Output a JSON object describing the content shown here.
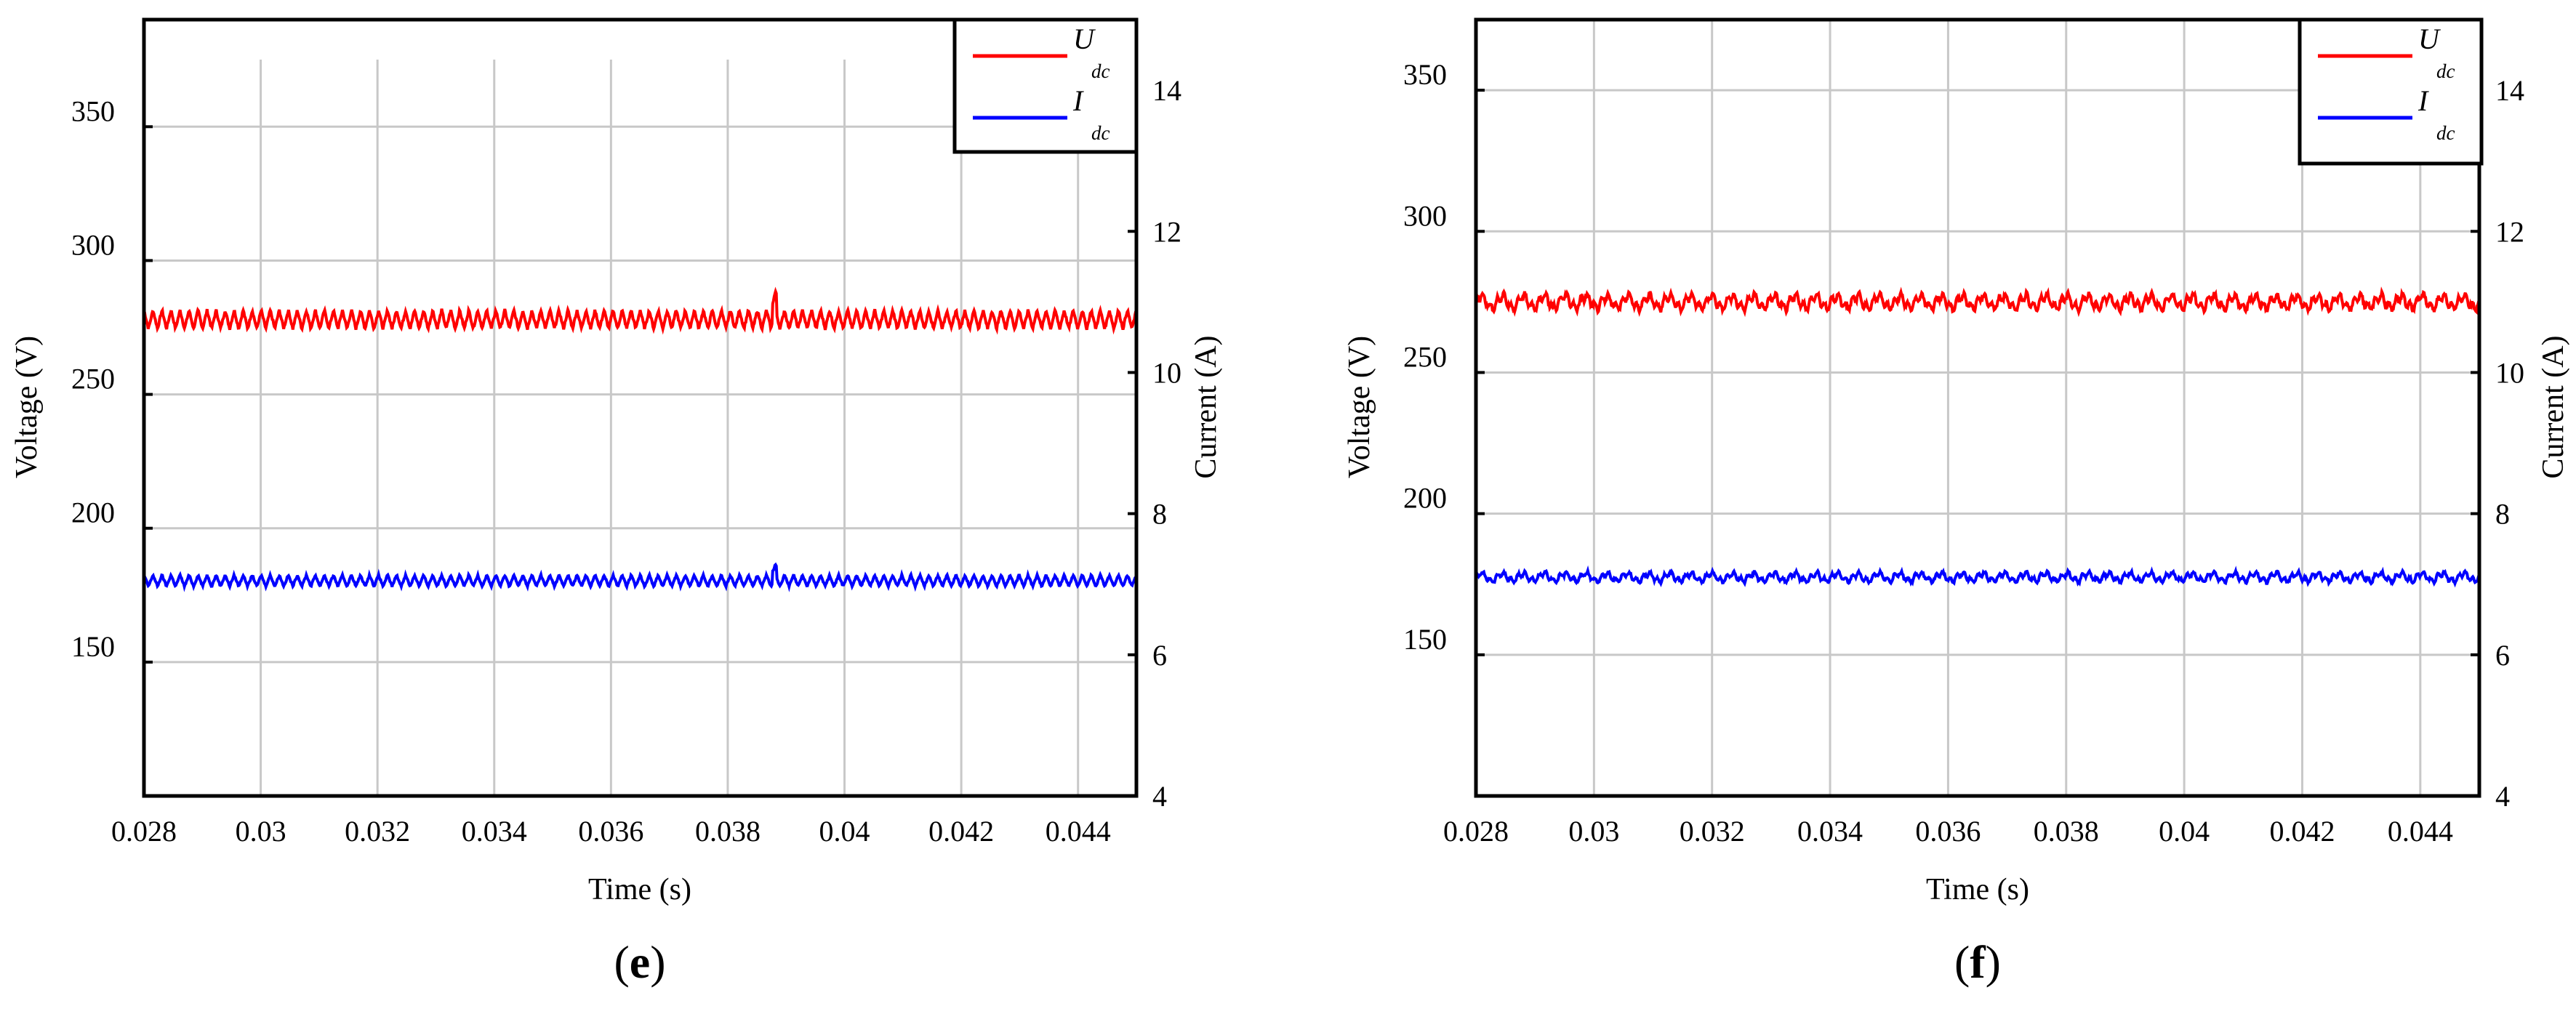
{
  "chart_data": [
    {
      "type": "line",
      "panel_label": "(e)",
      "xlabel": "Time (s)",
      "ylabel": "Voltage (V)",
      "ylabel_right": "Current (A)",
      "xlim": [
        0.028,
        0.045
      ],
      "ylim": [
        100,
        390
      ],
      "ylim_right": [
        4,
        15
      ],
      "x_ticks": [
        "0.028",
        "0.03",
        "0.032",
        "0.034",
        "0.036",
        "0.038",
        "0.04",
        "0.042",
        "0.044"
      ],
      "y_ticks": [
        "150",
        "200",
        "250",
        "300",
        "350"
      ],
      "y_ticks_right": [
        "4",
        "6",
        "8",
        "10",
        "12",
        "14"
      ],
      "grid": true,
      "legend_position": "top-right",
      "series": [
        {
          "name_main": "U",
          "name_sub": "dc",
          "axis": "left",
          "color": "#ff0000",
          "mean": 278,
          "ripple": 3.5,
          "ripple_cycles": 110,
          "spike_x": 0.0388,
          "spike_height": 7
        },
        {
          "name_main": "I",
          "name_sub": "dc",
          "axis": "right",
          "color": "#0000ff",
          "mean": 7.05,
          "ripple": 0.08,
          "ripple_cycles": 110,
          "spike_x": 0.0388,
          "spike_height": 0.15
        }
      ]
    },
    {
      "type": "line",
      "panel_label": "(f)",
      "xlabel": "Time (s)",
      "ylabel": "Voltage (V)",
      "ylabel_right": "Current (A)",
      "xlim": [
        0.028,
        0.045
      ],
      "ylim": [
        100,
        375
      ],
      "ylim_right": [
        4,
        15
      ],
      "x_ticks": [
        "0.028",
        "0.03",
        "0.032",
        "0.034",
        "0.036",
        "0.038",
        "0.04",
        "0.042",
        "0.044"
      ],
      "y_ticks": [
        "150",
        "200",
        "250",
        "300",
        "350"
      ],
      "y_ticks_right": [
        "4",
        "6",
        "8",
        "10",
        "12",
        "14"
      ],
      "grid": true,
      "legend_position": "top-right",
      "series": [
        {
          "name_main": "U",
          "name_sub": "dc",
          "axis": "left",
          "color": "#ff0000",
          "mean": 275,
          "ripple": 2.8,
          "ripple_cycles": 48,
          "spike_x": null,
          "spike_height": 0
        },
        {
          "name_main": "I",
          "name_sub": "dc",
          "axis": "right",
          "color": "#0000ff",
          "mean": 7.1,
          "ripple": 0.07,
          "ripple_cycles": 48,
          "spike_x": null,
          "spike_height": 0
        }
      ]
    }
  ]
}
